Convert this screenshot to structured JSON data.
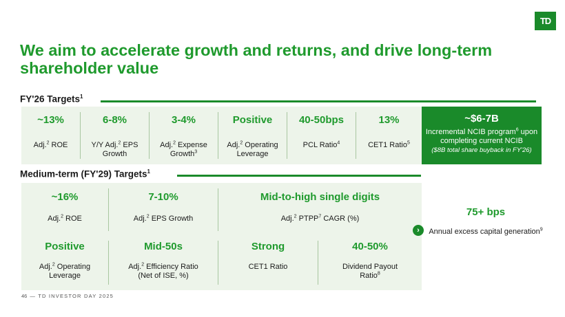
{
  "brand": {
    "logo_text": "TD",
    "accent": "#1a8a2a",
    "panel_bg": "#edf4ea"
  },
  "title": "We aim to accelerate growth and returns, and drive long-term shareholder value",
  "fy26": {
    "label": "FY'26 Targets",
    "label_sup": "1",
    "items": [
      {
        "value": "~13%",
        "desc_pre": "Adj.",
        "sup": "2",
        "desc_post": " ROE"
      },
      {
        "value": "6-8%",
        "desc_pre": "Y/Y Adj.",
        "sup": "2",
        "desc_post": " EPS Growth"
      },
      {
        "value": "3-4%",
        "desc_pre": "Adj.",
        "sup": "2",
        "desc_post": " Expense Growth",
        "sup2": "3"
      },
      {
        "value": "Positive",
        "desc_pre": "Adj.",
        "sup": "2",
        "desc_post": " Operating Leverage"
      },
      {
        "value": "40-50bps",
        "desc_pre": "PCL Ratio",
        "sup": "4",
        "desc_post": ""
      },
      {
        "value": "13%",
        "desc_pre": "CET1 Ratio",
        "sup": "5",
        "desc_post": ""
      }
    ],
    "highlight": {
      "value": "~$6-7B",
      "desc_pre": "Incremental NCIB program",
      "sup": "6",
      "desc_post": " upon completing current NCIB",
      "note": "($8B total share buyback in FY'26)"
    }
  },
  "medium": {
    "label": "Medium-term (FY'29) Targets",
    "label_sup": "1",
    "row1": [
      {
        "value": "~16%",
        "desc_pre": "Adj.",
        "sup": "2",
        "desc_post": " ROE"
      },
      {
        "value": "7-10%",
        "desc_pre": "Adj.",
        "sup": "2",
        "desc_post": " EPS Growth"
      },
      {
        "value": "Mid-to-high single digits",
        "desc_pre": "Adj.",
        "sup": "2",
        "desc_mid": " PTPP",
        "sup2": "7",
        "desc_post": " CAGR (%)"
      }
    ],
    "row2": [
      {
        "value": "Positive",
        "desc_pre": "Adj.",
        "sup": "2",
        "desc_post": " Operating Leverage"
      },
      {
        "value": "Mid-50s",
        "desc_pre": "Adj.",
        "sup": "2",
        "desc_post": " Efficiency Ratio (Net of ISE, %)"
      },
      {
        "value": "Strong",
        "desc_pre": "CET1 Ratio",
        "sup": "",
        "desc_post": ""
      },
      {
        "value": "40-50%",
        "desc_pre": "Dividend Payout Ratio",
        "sup": "8",
        "desc_post": ""
      }
    ],
    "capital": {
      "value": "75+ bps",
      "desc_pre": "Annual excess capital generation",
      "sup": "9"
    }
  },
  "footer": {
    "page": "46",
    "text": "— TD INVESTOR DAY 2025"
  }
}
